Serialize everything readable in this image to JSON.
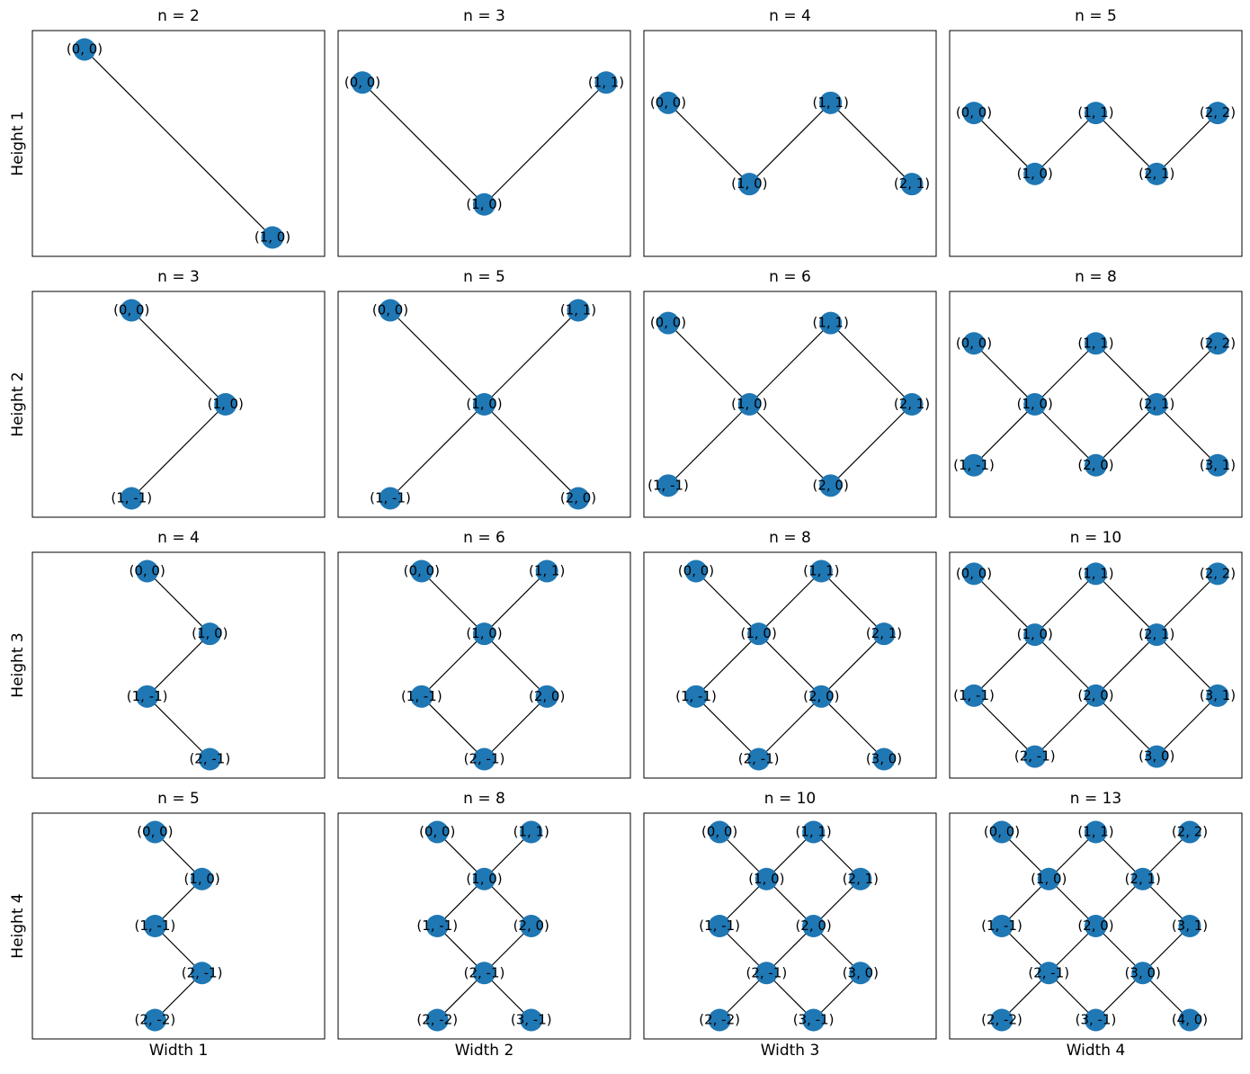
{
  "columns": [
    "Width 1",
    "Width 2",
    "Width 3",
    "Width 4"
  ],
  "rows": [
    {
      "label": "Height 1",
      "panels": [
        {
          "title": "n = 2",
          "nodes": [
            "(0, 0)",
            "(1, 0)"
          ]
        },
        {
          "title": "n = 3",
          "nodes": [
            "(0, 0)",
            "(1, 1)",
            "(1, 0)"
          ]
        },
        {
          "title": "n = 4",
          "nodes": [
            "(0, 0)",
            "(1, 1)",
            "(1, 0)",
            "(2, 1)"
          ]
        },
        {
          "title": "n = 5",
          "nodes": [
            "(0, 0)",
            "(1, 1)",
            "(2, 2)",
            "(1, 0)",
            "(2, 1)"
          ]
        }
      ]
    },
    {
      "label": "Height 2",
      "panels": [
        {
          "title": "n = 3",
          "nodes": [
            "(0, 0)",
            "(1, 0)",
            "(1, -1)"
          ]
        },
        {
          "title": "n = 5",
          "nodes": [
            "(0, 0)",
            "(1, 1)",
            "(1, 0)",
            "(1, -1)",
            "(2, 0)"
          ]
        },
        {
          "title": "n = 6",
          "nodes": [
            "(0, 0)",
            "(1, 1)",
            "(1, 0)",
            "(2, 1)",
            "(1, -1)",
            "(2, 0)"
          ]
        },
        {
          "title": "n = 8",
          "nodes": [
            "(0, 0)",
            "(1, 1)",
            "(2, 2)",
            "(1, 0)",
            "(2, 1)",
            "(1, -1)",
            "(2, 0)",
            "(3, 1)"
          ]
        }
      ]
    },
    {
      "label": "Height 3",
      "panels": [
        {
          "title": "n = 4",
          "nodes": [
            "(0, 0)",
            "(1, 0)",
            "(1, -1)",
            "(2, -1)"
          ]
        },
        {
          "title": "n = 6",
          "nodes": [
            "(0, 0)",
            "(1, 1)",
            "(1, 0)",
            "(1, -1)",
            "(2, 0)",
            "(2, -1)"
          ]
        },
        {
          "title": "n = 8",
          "nodes": [
            "(0, 0)",
            "(1, 1)",
            "(1, 0)",
            "(2, 1)",
            "(1, -1)",
            "(2, 0)",
            "(2, -1)",
            "(3, 0)"
          ]
        },
        {
          "title": "n = 10",
          "nodes": [
            "(0, 0)",
            "(1, 1)",
            "(2, 2)",
            "(1, 0)",
            "(2, 1)",
            "(1, -1)",
            "(2, 0)",
            "(3, 1)",
            "(2, -1)",
            "(3, 0)"
          ]
        }
      ]
    },
    {
      "label": "Height 4",
      "panels": [
        {
          "title": "n = 5",
          "nodes": [
            "(0, 0)",
            "(1, 0)",
            "(1, -1)",
            "(2, -1)",
            "(2, -2)"
          ]
        },
        {
          "title": "n = 8",
          "nodes": [
            "(0, 0)",
            "(1, 1)",
            "(1, 0)",
            "(2, 0)",
            "(1, -1)",
            "(2, -1)",
            "(2, -2)",
            "(3, -1)"
          ]
        },
        {
          "title": "n = 10",
          "nodes": [
            "(0, 0)",
            "(1, 1)",
            "(1, 0)",
            "(2, 1)",
            "(1, -1)",
            "(2, 0)",
            "(2, -1)",
            "(3, 0)",
            "(2, -2)",
            "(3, -1)"
          ]
        },
        {
          "title": "n = 13",
          "nodes": [
            "(0, 0)",
            "(1, 1)",
            "(2, 2)",
            "(1, 0)",
            "(2, 1)",
            "(1, -1)",
            "(2, 0)",
            "(3, 1)",
            "(2, -1)",
            "(3, 0)",
            "(2, -2)",
            "(3, -1)",
            "(4, 0)"
          ]
        }
      ]
    }
  ]
}
